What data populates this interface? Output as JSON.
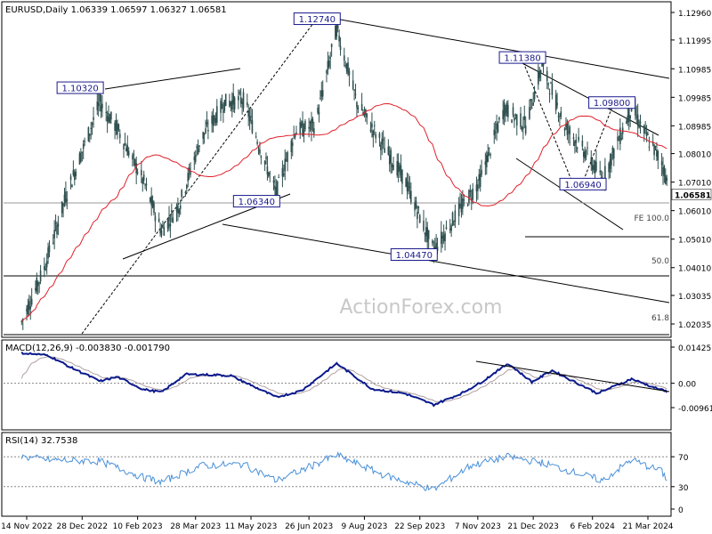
{
  "header": {
    "symbol_line": "EURUSD,Daily  1.06339 1.06597 1.06327 1.06581",
    "macd_label": "MACD(12,26,9) -0.003830 -0.001790",
    "rsi_label": "RSI(14) 32.7538"
  },
  "watermark": "ActionForex.com",
  "colors": {
    "candles": "#2f4f4f",
    "ma": "#e0202a",
    "trendline": "#000000",
    "macd": "#0b1a8c",
    "signal": "#b0a0a0",
    "rsi": "#4a90d9",
    "price_box_border": "#1a1a8c"
  },
  "chart_data": [
    {
      "type": "candlestick",
      "title": "EURUSD,Daily",
      "ohlc_last": {
        "open": 1.06339,
        "high": 1.06597,
        "low": 1.06327,
        "close": 1.06581
      },
      "last_price_label": "1.06581",
      "y_tick_labels": [
        "1.12960",
        "1.11995",
        "1.10985",
        "1.09985",
        "1.08985",
        "1.08010",
        "1.07010",
        "1.06010",
        "1.05010",
        "1.04010",
        "1.03035",
        "1.02035"
      ],
      "ylim": [
        1.02035,
        1.1296
      ],
      "x_tick_labels": [
        "14 Nov 2022",
        "28 Dec 2022",
        "10 Feb 2023",
        "28 Mar 2023",
        "11 May 2023",
        "26 Jun 2023",
        "9 Aug 2023",
        "22 Sep 2023",
        "7 Nov 2023",
        "21 Dec 2023",
        "6 Feb 2024",
        "21 Mar 2024"
      ],
      "price_points": [
        {
          "date": "14 Nov 2022",
          "value": 1.025
        },
        {
          "date": "28 Dec 2022",
          "value": 1.065
        },
        {
          "date": "10 Feb 2023",
          "value": 1.072
        },
        {
          "date": "28 Mar 2023",
          "value": 1.082
        },
        {
          "date": "11 May 2023",
          "value": 1.09
        },
        {
          "date": "26 Jun 2023",
          "value": 1.095
        },
        {
          "date": "9 Aug 2023",
          "value": 1.1
        },
        {
          "date": "22 Sep 2023",
          "value": 1.064
        },
        {
          "date": "7 Nov 2023",
          "value": 1.072
        },
        {
          "date": "21 Dec 2023",
          "value": 1.1
        },
        {
          "date": "6 Feb 2024",
          "value": 1.078
        },
        {
          "date": "21 Mar 2024",
          "value": 1.086
        }
      ],
      "annotations": [
        {
          "label": "1.10320",
          "date": "11 Jan 2023",
          "value": 1.1032
        },
        {
          "label": "1.06340",
          "date": "31 May 2023",
          "value": 1.0634
        },
        {
          "label": "1.12740",
          "date": "18 Jul 2023",
          "value": 1.1274
        },
        {
          "label": "1.04470",
          "date": "3 Oct 2023",
          "value": 1.0447
        },
        {
          "label": "1.11380",
          "date": "28 Dec 2023",
          "value": 1.1138
        },
        {
          "label": "1.06940",
          "date": "14 Feb 2024",
          "value": 1.0694
        },
        {
          "label": "1.09800",
          "date": "8 Mar 2024",
          "value": 1.098
        }
      ],
      "level_labels": [
        {
          "label": "FE 100.0",
          "value": 1.056
        },
        {
          "label": "50.0",
          "value": 1.041
        },
        {
          "label": "61.8",
          "value": 1.0209
        }
      ]
    },
    {
      "type": "line",
      "title": "MACD(12,26,9)",
      "values": {
        "macd": -0.00383,
        "signal": -0.00179
      },
      "y_tick_labels": [
        "0.014251",
        "0.00",
        "-0.009617"
      ],
      "ylim": [
        -0.009617,
        0.014251
      ]
    },
    {
      "type": "line",
      "title": "RSI(14)",
      "value": 32.7538,
      "y_tick_labels": [
        "70",
        "30",
        "0"
      ],
      "ylim": [
        0,
        100
      ],
      "levels": [
        70,
        30
      ]
    }
  ]
}
